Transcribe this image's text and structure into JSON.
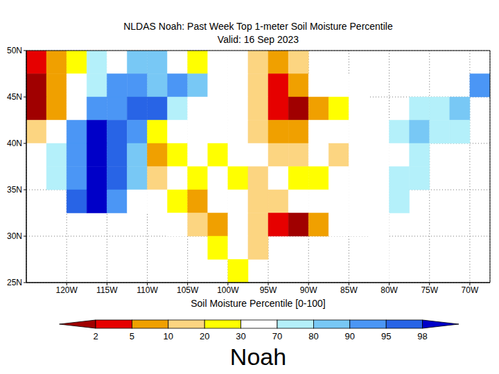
{
  "chart_data": {
    "type": "heatmap",
    "title": "NLDAS Noah: Past Week Top 1-meter Soil Moisture Percentile",
    "subtitle": "Valid: 16 Sep 2023",
    "xlim": [
      -125,
      -67.5
    ],
    "ylim": [
      25,
      50
    ],
    "xticks": [
      {
        "value": -120,
        "label": "120W"
      },
      {
        "value": -115,
        "label": "115W"
      },
      {
        "value": -110,
        "label": "110W"
      },
      {
        "value": -105,
        "label": "105W"
      },
      {
        "value": -100,
        "label": "100W"
      },
      {
        "value": -95,
        "label": "95W"
      },
      {
        "value": -90,
        "label": "90W"
      },
      {
        "value": -85,
        "label": "85W"
      },
      {
        "value": -80,
        "label": "80W"
      },
      {
        "value": -75,
        "label": "75W"
      },
      {
        "value": -70,
        "label": "70W"
      }
    ],
    "yticks": [
      {
        "value": 25,
        "label": "25N"
      },
      {
        "value": 30,
        "label": "30N"
      },
      {
        "value": 35,
        "label": "35N"
      },
      {
        "value": 40,
        "label": "40N"
      },
      {
        "value": 45,
        "label": "45N"
      },
      {
        "value": 50,
        "label": "50N"
      }
    ],
    "grid": true,
    "cells": {
      "lon_edges": [
        -125,
        -122.5,
        -120,
        -117.5,
        -115,
        -112.5,
        -110,
        -107.5,
        -105,
        -102.5,
        -100,
        -97.5,
        -95,
        -92.5,
        -90,
        -87.5,
        -85,
        -82.5,
        -80,
        -77.5,
        -75,
        -72.5,
        -70,
        -67.5
      ],
      "lat_edges": [
        50,
        47.5,
        45,
        42.5,
        40,
        37.5,
        35,
        32.5,
        30,
        27.5,
        25
      ],
      "values": [
        [
          2,
          8,
          25,
          75,
          60,
          80,
          85,
          55,
          25,
          45,
          60,
          12,
          5,
          15,
          null,
          null,
          null,
          null,
          null,
          null,
          null,
          null,
          null
        ],
        [
          1,
          8,
          35,
          72,
          90,
          92,
          88,
          90,
          88,
          55,
          35,
          15,
          4,
          8,
          45,
          40,
          45,
          null,
          null,
          null,
          null,
          null,
          90
        ],
        [
          1,
          8,
          40,
          92,
          90,
          96,
          97,
          75,
          50,
          35,
          40,
          15,
          3,
          1,
          5,
          25,
          40,
          null,
          null,
          70,
          75,
          85,
          null
        ],
        [
          10,
          30,
          90,
          98,
          97,
          93,
          25,
          60,
          50,
          30,
          40,
          15,
          5,
          8,
          30,
          35,
          50,
          60,
          75,
          80,
          78,
          72,
          null
        ],
        [
          65,
          75,
          92,
          98,
          95,
          80,
          8,
          25,
          40,
          20,
          45,
          30,
          15,
          15,
          30,
          12,
          30,
          45,
          60,
          75,
          null,
          null,
          null
        ],
        [
          null,
          72,
          92,
          98,
          96,
          80,
          15,
          50,
          20,
          40,
          25,
          15,
          35,
          20,
          25,
          30,
          45,
          65,
          75,
          75,
          null,
          null,
          null
        ],
        [
          null,
          null,
          95,
          98,
          90,
          40,
          50,
          20,
          8,
          30,
          35,
          15,
          18,
          40,
          50,
          30,
          45,
          60,
          70,
          null,
          null,
          null,
          null
        ],
        [
          null,
          null,
          null,
          null,
          null,
          null,
          null,
          30,
          10,
          5,
          30,
          10,
          2,
          1,
          5,
          50,
          55,
          60,
          null,
          null,
          null,
          null,
          null
        ],
        [
          null,
          null,
          null,
          null,
          null,
          null,
          null,
          null,
          null,
          20,
          30,
          15,
          null,
          null,
          null,
          null,
          null,
          35,
          null,
          null,
          null,
          null,
          null
        ],
        [
          null,
          null,
          null,
          null,
          null,
          null,
          null,
          null,
          null,
          null,
          20,
          null,
          null,
          null,
          null,
          null,
          null,
          40,
          null,
          null,
          null,
          null,
          null
        ]
      ]
    },
    "colorbar": {
      "label": "Soil Moisture Percentile [0-100]",
      "ticks": [
        2,
        5,
        10,
        20,
        30,
        70,
        80,
        90,
        95,
        98
      ],
      "colors": [
        "#a00000",
        "#e60000",
        "#f0a000",
        "#fcd581",
        "#ffff00",
        "#ffffff",
        "#b4f0fa",
        "#78c8f5",
        "#4b96f5",
        "#2864e6",
        "#0000c8"
      ]
    },
    "footer": "Noah"
  }
}
